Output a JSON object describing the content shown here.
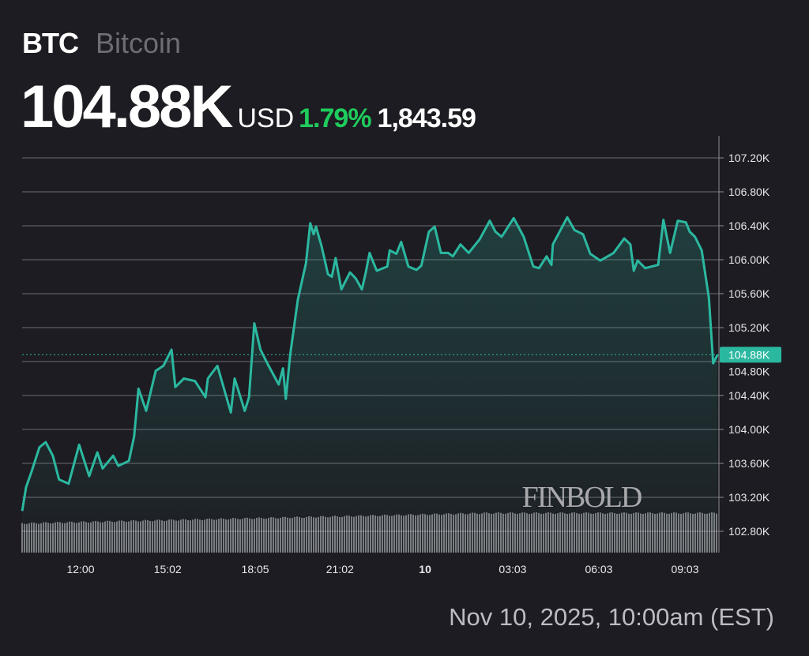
{
  "header": {
    "symbol": "BTC",
    "name": "Bitcoin",
    "price": "104.88K",
    "currency": "USD",
    "change_pct": "1.79%",
    "change_abs": "1,843.59"
  },
  "footer": {
    "timestamp": "Nov 10, 2025, 10:00am (EST)"
  },
  "watermark": "FINBOLD",
  "colors": {
    "line": "#2bb8a0",
    "positive": "#1fcb5c",
    "background": "#1d1c22"
  },
  "chart_data": {
    "type": "area",
    "ylim": [
      102.8,
      107.2
    ],
    "y_ticks": [
      "107.20K",
      "106.80K",
      "106.40K",
      "106.00K",
      "105.60K",
      "105.20K",
      "104.80K",
      "104.40K",
      "104.00K",
      "103.60K",
      "103.20K",
      "102.80K"
    ],
    "x_ticks": [
      {
        "label": "12:00",
        "t": "12:00"
      },
      {
        "label": "15:02",
        "t": "15:02"
      },
      {
        "label": "18:05",
        "t": "18:05"
      },
      {
        "label": "21:02",
        "t": "21:02"
      },
      {
        "label": "10",
        "t": "24:00",
        "bold": true
      },
      {
        "label": "03:03",
        "t": "27:03"
      },
      {
        "label": "06:03",
        "t": "30:03"
      },
      {
        "label": "09:03",
        "t": "33:03"
      }
    ],
    "current_label": "104.88K",
    "current_value": 104.88,
    "series": [
      {
        "points": [
          [
            "09:58",
            103.04
          ],
          [
            "10:06",
            103.32
          ],
          [
            "10:18",
            103.51
          ],
          [
            "10:34",
            103.79
          ],
          [
            "10:47",
            103.85
          ],
          [
            "11:02",
            103.69
          ],
          [
            "11:15",
            103.41
          ],
          [
            "11:35",
            103.36
          ],
          [
            "11:57",
            103.82
          ],
          [
            "12:18",
            103.45
          ],
          [
            "12:35",
            103.73
          ],
          [
            "12:46",
            103.54
          ],
          [
            "13:08",
            103.69
          ],
          [
            "13:19",
            103.57
          ],
          [
            "13:41",
            103.63
          ],
          [
            "13:52",
            103.92
          ],
          [
            "14:01",
            104.48
          ],
          [
            "14:17",
            104.22
          ],
          [
            "14:37",
            104.69
          ],
          [
            "14:53",
            104.75
          ],
          [
            "15:10",
            104.94
          ],
          [
            "15:18",
            104.5
          ],
          [
            "15:36",
            104.6
          ],
          [
            "15:59",
            104.57
          ],
          [
            "16:21",
            104.38
          ],
          [
            "16:26",
            104.6
          ],
          [
            "16:46",
            104.75
          ],
          [
            "17:14",
            104.2
          ],
          [
            "17:22",
            104.6
          ],
          [
            "17:43",
            104.22
          ],
          [
            "17:52",
            104.38
          ],
          [
            "18:03",
            105.25
          ],
          [
            "18:16",
            104.94
          ],
          [
            "18:33",
            104.75
          ],
          [
            "18:54",
            104.53
          ],
          [
            "19:03",
            104.72
          ],
          [
            "19:09",
            104.36
          ],
          [
            "19:18",
            104.88
          ],
          [
            "19:34",
            105.53
          ],
          [
            "19:51",
            105.96
          ],
          [
            "20:00",
            106.43
          ],
          [
            "20:07",
            106.3
          ],
          [
            "20:12",
            106.39
          ],
          [
            "20:24",
            106.15
          ],
          [
            "20:37",
            105.83
          ],
          [
            "20:45",
            105.8
          ],
          [
            "20:53",
            106.02
          ],
          [
            "21:05",
            105.65
          ],
          [
            "21:23",
            105.85
          ],
          [
            "21:35",
            105.78
          ],
          [
            "21:48",
            105.65
          ],
          [
            "21:56",
            105.85
          ],
          [
            "22:04",
            106.08
          ],
          [
            "22:19",
            105.87
          ],
          [
            "22:41",
            105.92
          ],
          [
            "22:46",
            106.11
          ],
          [
            "23:00",
            106.07
          ],
          [
            "23:10",
            106.21
          ],
          [
            "23:25",
            105.92
          ],
          [
            "23:42",
            105.88
          ],
          [
            "23:52",
            105.93
          ],
          [
            "24:08",
            106.33
          ],
          [
            "24:20",
            106.39
          ],
          [
            "24:33",
            106.08
          ],
          [
            "24:48",
            106.08
          ],
          [
            "24:58",
            106.04
          ],
          [
            "25:14",
            106.18
          ],
          [
            "25:31",
            106.08
          ],
          [
            "25:54",
            106.24
          ],
          [
            "26:15",
            106.46
          ],
          [
            "26:27",
            106.33
          ],
          [
            "26:40",
            106.27
          ],
          [
            "27:05",
            106.49
          ],
          [
            "27:26",
            106.27
          ],
          [
            "27:46",
            105.92
          ],
          [
            "27:58",
            105.9
          ],
          [
            "28:14",
            106.04
          ],
          [
            "28:24",
            105.94
          ],
          [
            "28:27",
            106.18
          ],
          [
            "28:57",
            106.5
          ],
          [
            "29:12",
            106.35
          ],
          [
            "29:30",
            106.3
          ],
          [
            "29:45",
            106.07
          ],
          [
            "30:06",
            105.99
          ],
          [
            "30:34",
            106.08
          ],
          [
            "30:56",
            106.25
          ],
          [
            "31:09",
            106.18
          ],
          [
            "31:16",
            105.87
          ],
          [
            "31:24",
            105.99
          ],
          [
            "31:40",
            105.9
          ],
          [
            "32:07",
            105.94
          ],
          [
            "32:18",
            106.47
          ],
          [
            "32:32",
            106.08
          ],
          [
            "32:48",
            106.46
          ],
          [
            "33:05",
            106.44
          ],
          [
            "33:13",
            106.33
          ],
          [
            "33:24",
            106.27
          ],
          [
            "33:38",
            106.11
          ],
          [
            "33:53",
            105.55
          ],
          [
            "34:02",
            104.78
          ],
          [
            "34:11",
            104.88
          ]
        ]
      }
    ]
  }
}
